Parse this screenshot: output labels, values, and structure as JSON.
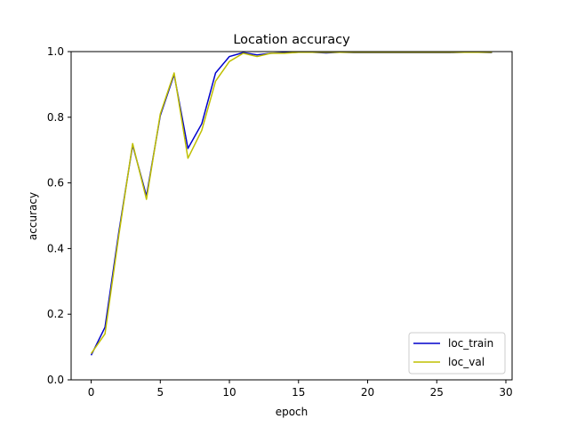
{
  "chart_data": {
    "type": "line",
    "title": "Location accuracy",
    "xlabel": "epoch",
    "ylabel": "accuracy",
    "xlim": [
      -1.45,
      30.45
    ],
    "ylim": [
      0.0,
      1.0
    ],
    "xticks": [
      0,
      5,
      10,
      15,
      20,
      25,
      30
    ],
    "yticks": [
      0.0,
      0.2,
      0.4,
      0.6,
      0.8,
      1.0
    ],
    "xtick_labels": [
      "0",
      "5",
      "10",
      "15",
      "20",
      "25",
      "30"
    ],
    "ytick_labels": [
      "0.0",
      "0.2",
      "0.4",
      "0.6",
      "0.8",
      "1.0"
    ],
    "grid": false,
    "legend_position": "lower-right",
    "x": [
      0,
      1,
      2,
      3,
      4,
      5,
      6,
      7,
      8,
      9,
      10,
      11,
      12,
      13,
      14,
      15,
      16,
      17,
      18,
      19,
      20,
      21,
      22,
      23,
      24,
      25,
      26,
      27,
      28,
      29
    ],
    "series": [
      {
        "name": "loc_train",
        "color": "#0000cc",
        "values": [
          0.075,
          0.16,
          0.45,
          0.715,
          0.56,
          0.805,
          0.93,
          0.705,
          0.78,
          0.935,
          0.985,
          0.997,
          0.99,
          0.995,
          0.997,
          0.998,
          0.998,
          0.996,
          0.998,
          0.997,
          0.997,
          0.997,
          0.997,
          0.997,
          0.997,
          0.997,
          0.997,
          0.998,
          0.998,
          0.997
        ]
      },
      {
        "name": "loc_val",
        "color": "#bfbf00",
        "values": [
          0.08,
          0.14,
          0.44,
          0.72,
          0.55,
          0.81,
          0.935,
          0.675,
          0.76,
          0.91,
          0.97,
          0.995,
          0.985,
          0.995,
          0.995,
          0.998,
          0.998,
          0.998,
          0.998,
          0.998,
          0.998,
          0.998,
          0.998,
          0.998,
          0.998,
          0.998,
          0.998,
          0.998,
          0.998,
          0.998
        ]
      }
    ]
  }
}
